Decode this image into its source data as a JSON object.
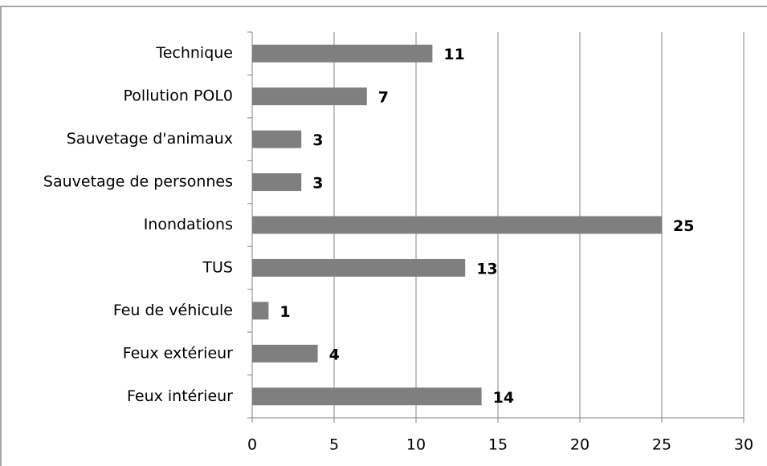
{
  "chart_data": {
    "type": "bar",
    "orientation": "horizontal",
    "categories": [
      "Technique",
      "Pollution POL0",
      "Sauvetage d'animaux",
      "Sauvetage de personnes",
      "Inondations",
      "TUS",
      "Feu de véhicule",
      "Feux extérieur",
      "Feux intérieur"
    ],
    "values": [
      11,
      7,
      3,
      3,
      25,
      13,
      1,
      4,
      14
    ],
    "color": "#7f7f7f",
    "xlim": [
      0,
      30
    ],
    "xticks": [
      0,
      5,
      10,
      15,
      20,
      25,
      30
    ],
    "grid": true
  }
}
